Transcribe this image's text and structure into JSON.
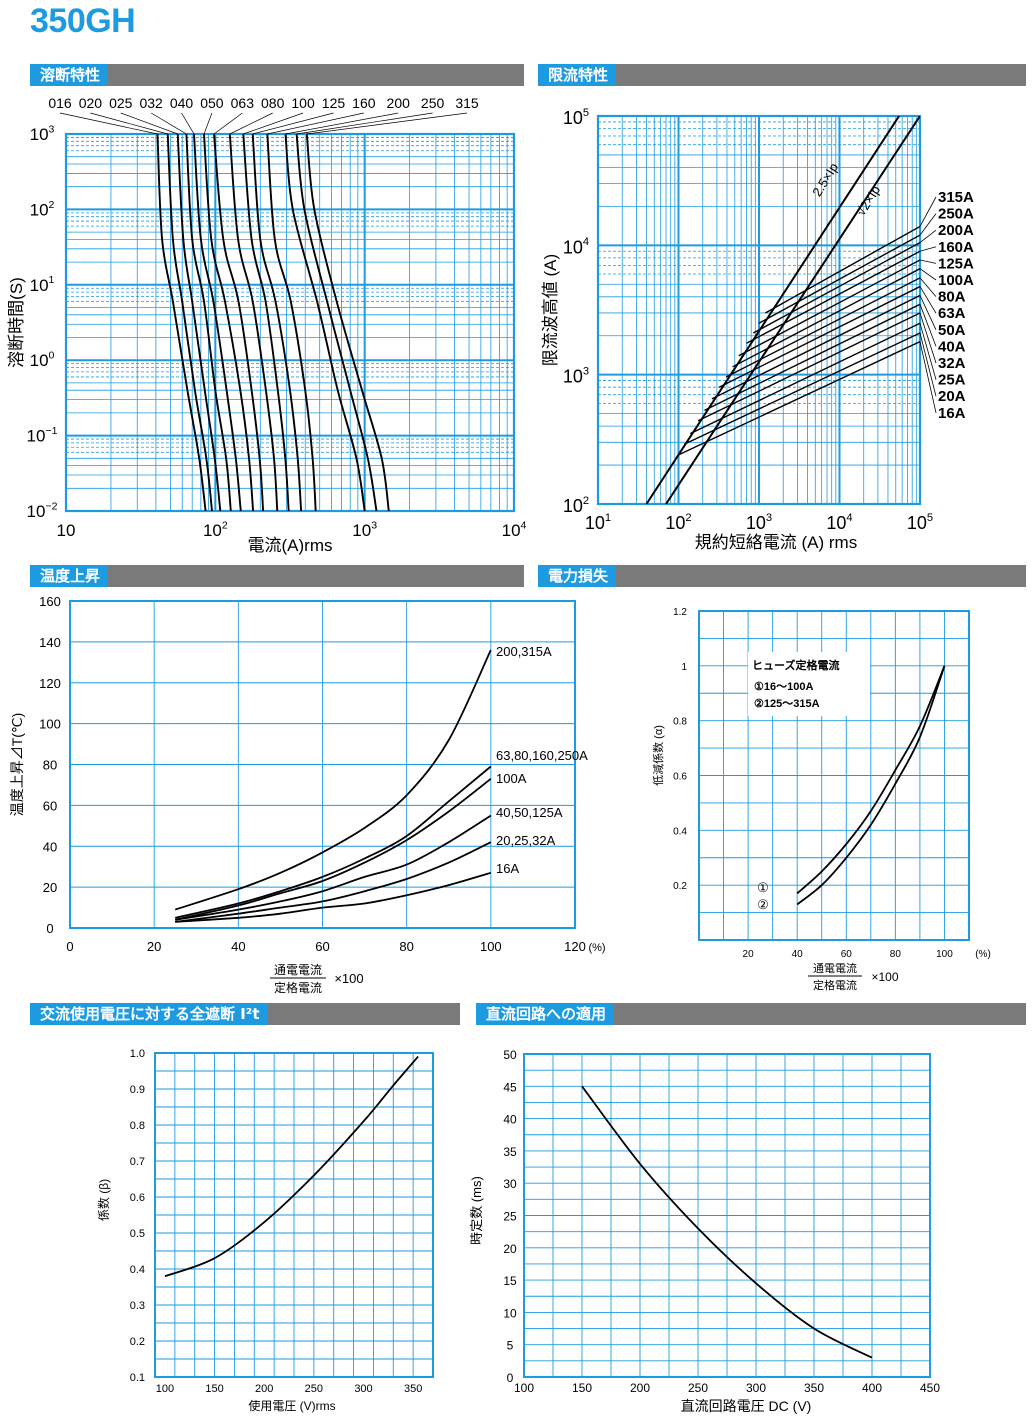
{
  "page_title": "350GH",
  "sections": {
    "melting": "溶断特性",
    "limiting": "限流特性",
    "temp": "温度上昇",
    "power": "電力損失",
    "ac": "交流使用電圧に対する全遮断 I²t",
    "dc": "直流回路への適用"
  },
  "colors": {
    "accent": "#1e9be0",
    "bar": "#7a7a7a",
    "grid": "#1e9be0",
    "curve": "#000000"
  },
  "chart_data": [
    {
      "id": "melting",
      "type": "line",
      "xscale": "log",
      "yscale": "log",
      "xlim": [
        10,
        10000
      ],
      "ylim": [
        0.01,
        1000
      ],
      "xticks": [
        "10",
        "10²",
        "10³",
        "10⁴"
      ],
      "yticks": [
        "10⁻²",
        "10⁻¹",
        "10⁰",
        "10¹",
        "10²",
        "10³"
      ],
      "xlabel": "電流(A)rms",
      "ylabel": "溶断時間(S)",
      "ratings": [
        "016",
        "020",
        "025",
        "032",
        "040",
        "050",
        "063",
        "080",
        "100",
        "125",
        "160",
        "200",
        "250",
        "315"
      ],
      "series": [
        {
          "name": "016",
          "points": [
            [
              41,
              1000
            ],
            [
              44,
              40
            ],
            [
              52,
              6
            ],
            [
              65,
              0.4
            ],
            [
              78,
              0.05
            ],
            [
              86,
              0.01
            ]
          ]
        },
        {
          "name": "020",
          "points": [
            [
              48,
              1000
            ],
            [
              52,
              40
            ],
            [
              60,
              6
            ],
            [
              73,
              0.4
            ],
            [
              87,
              0.05
            ],
            [
              95,
              0.01
            ]
          ]
        },
        {
          "name": "025",
          "points": [
            [
              56,
              1000
            ],
            [
              61,
              40
            ],
            [
              70,
              6
            ],
            [
              85,
              0.4
            ],
            [
              99,
              0.05
            ],
            [
              108,
              0.01
            ]
          ]
        },
        {
          "name": "032",
          "points": [
            [
              64,
              1000
            ],
            [
              70,
              40
            ],
            [
              84,
              6
            ],
            [
              100,
              0.4
            ],
            [
              118,
              0.05
            ],
            [
              127,
              0.01
            ]
          ]
        },
        {
          "name": "040",
          "points": [
            [
              72,
              1000
            ],
            [
              80,
              40
            ],
            [
              97,
              6
            ],
            [
              119,
              0.4
            ],
            [
              137,
              0.05
            ],
            [
              148,
              0.01
            ]
          ]
        },
        {
          "name": "050",
          "points": [
            [
              84,
              1000
            ],
            [
              94,
              40
            ],
            [
              116,
              6
            ],
            [
              147,
              0.4
            ],
            [
              168,
              0.05
            ],
            [
              179,
              0.01
            ]
          ]
        },
        {
          "name": "063",
          "points": [
            [
              98,
              1000
            ],
            [
              113,
              40
            ],
            [
              143,
              6
            ],
            [
              175,
              0.4
            ],
            [
              198,
              0.05
            ],
            [
              209,
              0.01
            ]
          ]
        },
        {
          "name": "080",
          "points": [
            [
              125,
              1000
            ],
            [
              142,
              40
            ],
            [
              178,
              6
            ],
            [
              218,
              0.4
            ],
            [
              247,
              0.05
            ],
            [
              260,
              0.01
            ]
          ]
        },
        {
          "name": "100",
          "points": [
            [
              154,
              1000
            ],
            [
              175,
              40
            ],
            [
              217,
              6
            ],
            [
              262,
              0.4
            ],
            [
              294,
              0.05
            ],
            [
              310,
              0.01
            ]
          ]
        },
        {
          "name": "125",
          "points": [
            [
              178,
              1000
            ],
            [
              200,
              40
            ],
            [
              253,
              6
            ],
            [
              316,
              0.4
            ],
            [
              356,
              0.05
            ],
            [
              375,
              0.01
            ]
          ]
        },
        {
          "name": "160",
          "points": [
            [
              223,
              1000
            ],
            [
              250,
              40
            ],
            [
              320,
              6
            ],
            [
              400,
              0.4
            ],
            [
              448,
              0.05
            ],
            [
              470,
              0.01
            ]
          ]
        },
        {
          "name": "200",
          "points": [
            [
              295,
              1000
            ],
            [
              330,
              100
            ],
            [
              480,
              6
            ],
            [
              660,
              0.4
            ],
            [
              880,
              0.05
            ],
            [
              1000,
              0.01
            ]
          ]
        },
        {
          "name": "250",
          "points": [
            [
              350,
              1000
            ],
            [
              395,
              100
            ],
            [
              560,
              6
            ],
            [
              800,
              0.4
            ],
            [
              1050,
              0.05
            ],
            [
              1200,
              0.01
            ]
          ]
        },
        {
          "name": "315",
          "points": [
            [
              410,
              1000
            ],
            [
              460,
              100
            ],
            [
              650,
              6
            ],
            [
              960,
              0.4
            ],
            [
              1300,
              0.05
            ],
            [
              1450,
              0.01
            ]
          ]
        }
      ]
    },
    {
      "id": "limiting",
      "type": "line",
      "xscale": "log",
      "yscale": "log",
      "xlim": [
        10,
        100000
      ],
      "ylim": [
        100,
        100000
      ],
      "xticks": [
        "10¹",
        "10²",
        "10³",
        "10⁴",
        "10⁵"
      ],
      "yticks": [
        "10²",
        "10³",
        "10⁴",
        "10⁵"
      ],
      "xlabel": "規約短絡電流 (A) rms",
      "ylabel": "限流波高値 (A)",
      "line_labels": [
        "2.5×Ip",
        "√2×Ip"
      ],
      "ratings": [
        "315A",
        "250A",
        "200A",
        "160A",
        "125A",
        "100A",
        "80A",
        "63A",
        "50A",
        "40A",
        "32A",
        "25A",
        "20A",
        "16A"
      ],
      "diagonals": [
        {
          "name": "2.5×Ip",
          "points": [
            [
              40,
              100
            ],
            [
              55000,
              100000
            ]
          ]
        },
        {
          "name": "√2×Ip",
          "points": [
            [
              70,
              100
            ],
            [
              100000,
              100000
            ]
          ]
        }
      ],
      "series": [
        {
          "name": "315A",
          "start": [
            1200,
            3000
          ],
          "end": [
            100000,
            14000
          ]
        },
        {
          "name": "250A",
          "start": [
            1000,
            2500
          ],
          "end": [
            100000,
            12000
          ]
        },
        {
          "name": "200A",
          "start": [
            850,
            2100
          ],
          "end": [
            100000,
            10500
          ]
        },
        {
          "name": "160A",
          "start": [
            700,
            1750
          ],
          "end": [
            100000,
            9000
          ]
        },
        {
          "name": "125A",
          "start": [
            560,
            1400
          ],
          "end": [
            100000,
            7700
          ]
        },
        {
          "name": "100A",
          "start": [
            470,
            1150
          ],
          "end": [
            100000,
            6600
          ]
        },
        {
          "name": "80A",
          "start": [
            390,
            960
          ],
          "end": [
            100000,
            5600
          ]
        },
        {
          "name": "63A",
          "start": [
            320,
            800
          ],
          "end": [
            100000,
            4800
          ]
        },
        {
          "name": "50A",
          "start": [
            260,
            650
          ],
          "end": [
            100000,
            4100
          ]
        },
        {
          "name": "40A",
          "start": [
            210,
            530
          ],
          "end": [
            100000,
            3500
          ]
        },
        {
          "name": "32A",
          "start": [
            175,
            440
          ],
          "end": [
            100000,
            3000
          ]
        },
        {
          "name": "25A",
          "start": [
            140,
            350
          ],
          "end": [
            100000,
            2500
          ]
        },
        {
          "name": "20A",
          "start": [
            118,
            290
          ],
          "end": [
            100000,
            2100
          ]
        },
        {
          "name": "16A",
          "start": [
            100,
            240
          ],
          "end": [
            100000,
            1800
          ]
        }
      ]
    },
    {
      "id": "temp",
      "type": "line",
      "xlim": [
        0,
        120
      ],
      "ylim": [
        0,
        160
      ],
      "xticks": [
        0,
        20,
        40,
        60,
        80,
        100,
        120
      ],
      "yticks": [
        0,
        20,
        40,
        60,
        80,
        100,
        120,
        140,
        160
      ],
      "xunit": "(%)",
      "ylabel": "温度上昇⊿T(℃)",
      "xlabel_num": "通電電流",
      "xlabel_den": "定格電流",
      "xlabel_mul": "×100",
      "series": [
        {
          "name": "200,315A",
          "points": [
            [
              25,
              9
            ],
            [
              40,
              19
            ],
            [
              50,
              27
            ],
            [
              60,
              37
            ],
            [
              70,
              49
            ],
            [
              80,
              65
            ],
            [
              90,
              92
            ],
            [
              100,
              136
            ]
          ]
        },
        {
          "name": "63,80,160,250A",
          "points": [
            [
              25,
              5
            ],
            [
              40,
              12
            ],
            [
              50,
              18
            ],
            [
              60,
              25
            ],
            [
              70,
              34
            ],
            [
              80,
              45
            ],
            [
              90,
              62
            ],
            [
              100,
              79
            ]
          ]
        },
        {
          "name": "100A",
          "points": [
            [
              25,
              4
            ],
            [
              40,
              11
            ],
            [
              50,
              17
            ],
            [
              60,
              23
            ],
            [
              70,
              32
            ],
            [
              80,
              43
            ],
            [
              90,
              57
            ],
            [
              100,
              73
            ]
          ]
        },
        {
          "name": "40,50,125A",
          "points": [
            [
              25,
              4
            ],
            [
              40,
              9
            ],
            [
              50,
              13
            ],
            [
              60,
              18
            ],
            [
              70,
              25
            ],
            [
              80,
              31
            ],
            [
              90,
              42
            ],
            [
              100,
              55
            ]
          ]
        },
        {
          "name": "20,25,32A",
          "points": [
            [
              25,
              3
            ],
            [
              40,
              7
            ],
            [
              50,
              10
            ],
            [
              60,
              13
            ],
            [
              70,
              18
            ],
            [
              80,
              24
            ],
            [
              90,
              32
            ],
            [
              100,
              42
            ]
          ]
        },
        {
          "name": "16A",
          "points": [
            [
              25,
              3
            ],
            [
              40,
              5
            ],
            [
              50,
              7
            ],
            [
              60,
              10
            ],
            [
              70,
              12
            ],
            [
              80,
              16
            ],
            [
              90,
              21
            ],
            [
              100,
              27
            ]
          ]
        }
      ]
    },
    {
      "id": "power",
      "type": "line",
      "xlim": [
        0,
        110
      ],
      "ylim": [
        0,
        1.2
      ],
      "xticks": [
        20,
        40,
        60,
        80,
        100
      ],
      "yticks": [
        0.2,
        0.4,
        0.6,
        0.8,
        1,
        1.2
      ],
      "xunit": "(%)",
      "ylabel": "低減係数 (α)",
      "xlabel_num": "通電電流",
      "xlabel_den": "定格電流",
      "xlabel_mul": "×100",
      "legend_title": "ヒューズ定格電流",
      "legend": [
        "①16～100A",
        "②125～315A"
      ],
      "markers": [
        "①",
        "②"
      ],
      "series": [
        {
          "name": "①",
          "points": [
            [
              40,
              0.17
            ],
            [
              50,
              0.25
            ],
            [
              60,
              0.35
            ],
            [
              70,
              0.47
            ],
            [
              80,
              0.62
            ],
            [
              90,
              0.78
            ],
            [
              100,
              1
            ]
          ]
        },
        {
          "name": "②",
          "points": [
            [
              40,
              0.13
            ],
            [
              50,
              0.2
            ],
            [
              60,
              0.3
            ],
            [
              70,
              0.42
            ],
            [
              80,
              0.57
            ],
            [
              90,
              0.74
            ],
            [
              100,
              1
            ]
          ]
        }
      ]
    },
    {
      "id": "ac",
      "type": "line",
      "xlim": [
        90,
        370
      ],
      "ylim": [
        0.1,
        1.0
      ],
      "xticks": [
        100,
        150,
        200,
        250,
        300,
        350
      ],
      "yticks": [
        0.1,
        0.2,
        0.3,
        0.4,
        0.5,
        0.6,
        0.7,
        0.8,
        0.9,
        1.0
      ],
      "ylabel": "係数 (β)",
      "xlabel": "使用電圧 (V)rms",
      "series": [
        {
          "name": "β",
          "points": [
            [
              100,
              0.38
            ],
            [
              150,
              0.43
            ],
            [
              200,
              0.53
            ],
            [
              250,
              0.66
            ],
            [
              300,
              0.81
            ],
            [
              330,
              0.91
            ],
            [
              355,
              0.99
            ]
          ]
        }
      ]
    },
    {
      "id": "dc",
      "type": "line",
      "xlim": [
        100,
        450
      ],
      "ylim": [
        0,
        50
      ],
      "xticks": [
        100,
        150,
        200,
        250,
        300,
        350,
        400,
        450
      ],
      "yticks": [
        0,
        5,
        10,
        15,
        20,
        25,
        30,
        35,
        40,
        45,
        50
      ],
      "ylabel": "時定数 (ms)",
      "xlabel": "直流回路電圧 DC (V)",
      "series": [
        {
          "name": "τ",
          "points": [
            [
              150,
              45
            ],
            [
              200,
              33
            ],
            [
              250,
              23
            ],
            [
              300,
              14.5
            ],
            [
              350,
              7.5
            ],
            [
              400,
              3
            ]
          ]
        }
      ]
    }
  ]
}
